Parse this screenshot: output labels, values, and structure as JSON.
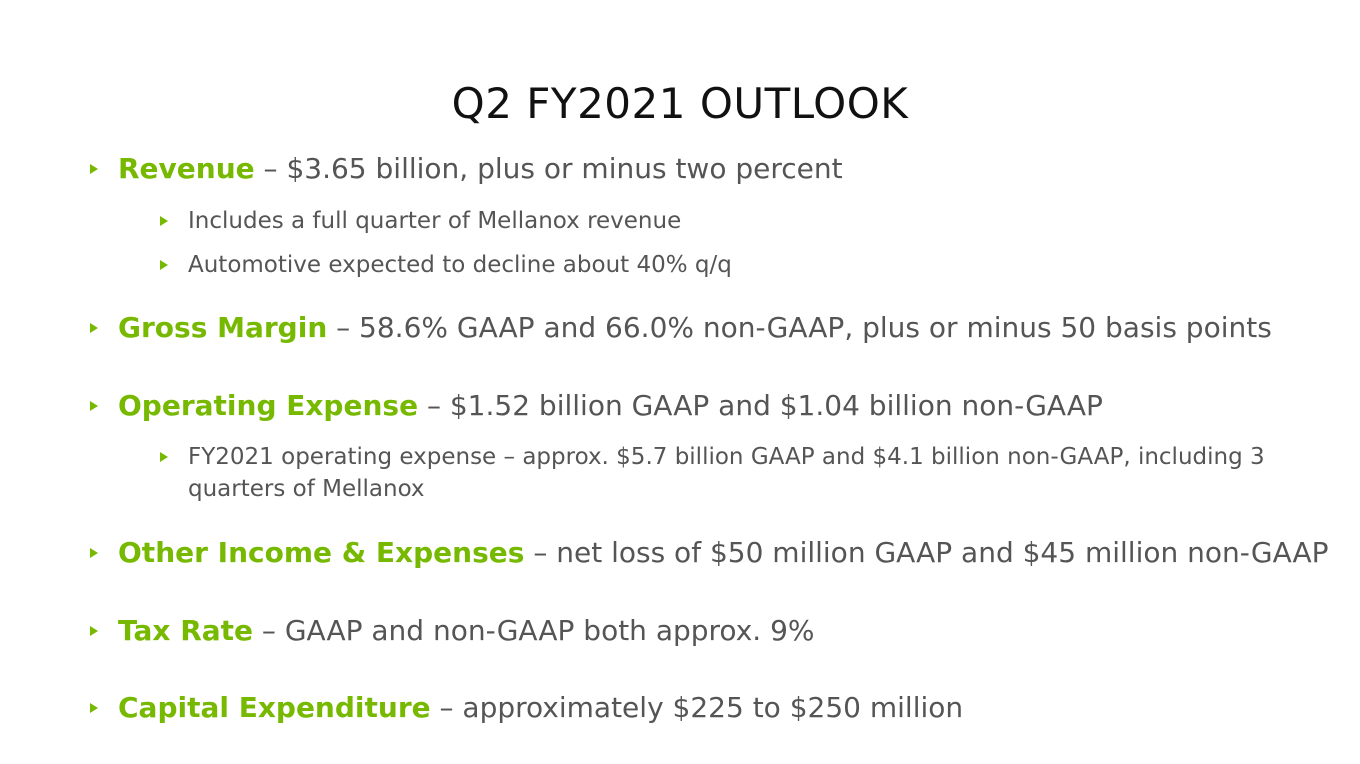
{
  "title": "Q2 FY2021 OUTLOOK",
  "theme": {
    "accent": "#76b900",
    "text": "#555555",
    "title": "#111111"
  },
  "items": [
    {
      "label": "Revenue",
      "detail": " – $3.65 billion, plus or minus two percent",
      "subs": [
        "Includes a full quarter of Mellanox revenue",
        "Automotive expected to decline about 40% q/q"
      ]
    },
    {
      "label": "Gross Margin",
      "detail": " – 58.6% GAAP and 66.0% non-GAAP, plus or minus 50 basis points"
    },
    {
      "label": "Operating Expense",
      "detail": " – $1.52 billion GAAP and $1.04 billion non-GAAP",
      "subs": [
        "FY2021 operating expense – approx. $5.7 billion GAAP and $4.1 billion non-GAAP, including 3 quarters of Mellanox"
      ]
    },
    {
      "label": "Other Income & Expenses",
      "detail": " – net loss of $50 million GAAP and $45 million non-GAAP"
    },
    {
      "label": "Tax Rate",
      "detail": " – GAAP and non-GAAP both approx. 9%"
    },
    {
      "label": "Capital Expenditure",
      "detail": " – approximately $225 to $250 million"
    }
  ]
}
